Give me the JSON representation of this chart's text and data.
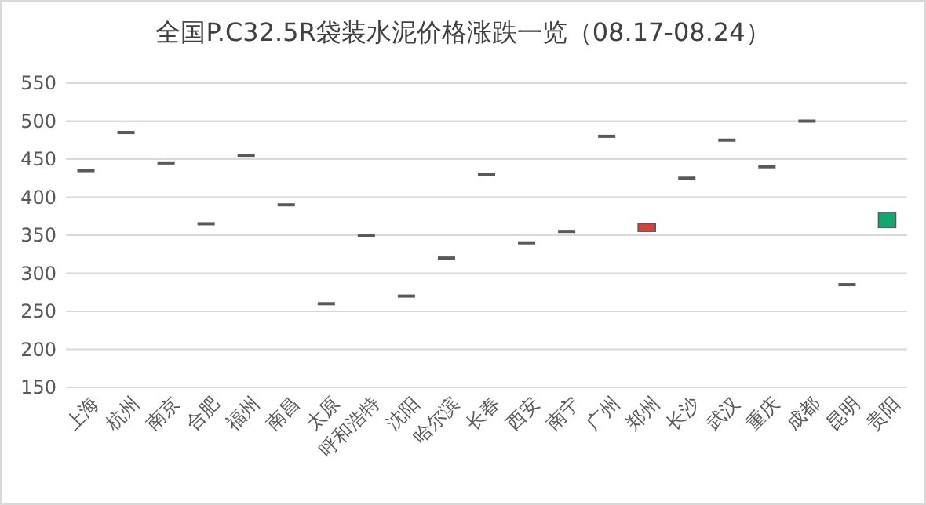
{
  "chart_data": {
    "type": "candlestick",
    "title": "全国P.C32.5R袋装水泥价格涨跌一览（08.17-08.24）",
    "categories": [
      "上海",
      "杭州",
      "南京",
      "合肥",
      "福州",
      "南昌",
      "太原",
      "呼和浩特",
      "沈阳",
      "哈尔滨",
      "长春",
      "西安",
      "南宁",
      "广州",
      "郑州",
      "长沙",
      "武汉",
      "重庆",
      "成都",
      "昆明",
      "贵阳"
    ],
    "ohlc": [
      [
        435,
        435,
        435,
        435
      ],
      [
        485,
        485,
        485,
        485
      ],
      [
        445,
        445,
        445,
        445
      ],
      [
        365,
        365,
        365,
        365
      ],
      [
        455,
        455,
        455,
        455
      ],
      [
        390,
        390,
        390,
        390
      ],
      [
        260,
        260,
        260,
        260
      ],
      [
        350,
        350,
        350,
        350
      ],
      [
        270,
        270,
        270,
        270
      ],
      [
        320,
        320,
        320,
        320
      ],
      [
        430,
        430,
        430,
        430
      ],
      [
        340,
        340,
        340,
        340
      ],
      [
        355,
        355,
        355,
        355
      ],
      [
        480,
        480,
        480,
        480
      ],
      [
        365,
        365,
        355,
        355
      ],
      [
        425,
        425,
        425,
        425
      ],
      [
        475,
        475,
        475,
        475
      ],
      [
        440,
        440,
        440,
        440
      ],
      [
        500,
        500,
        500,
        500
      ],
      [
        285,
        285,
        285,
        285
      ],
      [
        360,
        380,
        360,
        380
      ]
    ],
    "colors": [
      "#595959",
      "#595959",
      "#595959",
      "#595959",
      "#595959",
      "#595959",
      "#595959",
      "#595959",
      "#595959",
      "#595959",
      "#595959",
      "#595959",
      "#595959",
      "#595959",
      "#e03c3c",
      "#595959",
      "#595959",
      "#595959",
      "#595959",
      "#595959",
      "#10a870"
    ],
    "ylim": [
      150,
      550
    ],
    "yticks": [
      150,
      200,
      250,
      300,
      350,
      400,
      450,
      500,
      550
    ],
    "grid": "y"
  }
}
